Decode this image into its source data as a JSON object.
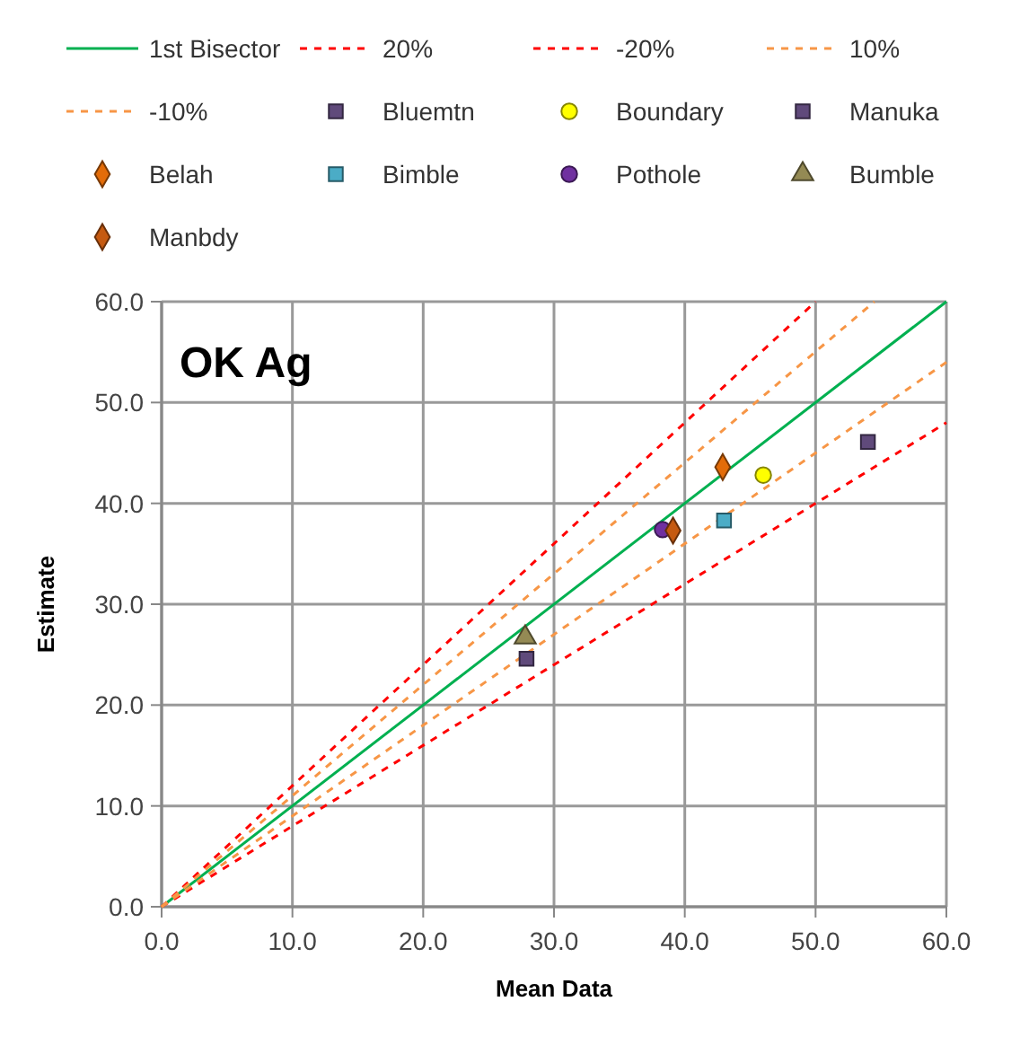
{
  "chart_data": {
    "type": "scatter",
    "title": "OK Ag",
    "xlabel": "Mean Data",
    "ylabel": "Estimate",
    "xlim": [
      0,
      60
    ],
    "ylim": [
      0,
      60
    ],
    "xticks": [
      {
        "value": 0,
        "label": "0.0"
      },
      {
        "value": 10,
        "label": "10.0"
      },
      {
        "value": 20,
        "label": "20.0"
      },
      {
        "value": 30,
        "label": "30.0"
      },
      {
        "value": 40,
        "label": "40.0"
      },
      {
        "value": 50,
        "label": "50.0"
      },
      {
        "value": 60,
        "label": "60.0"
      }
    ],
    "yticks": [
      {
        "value": 0,
        "label": "0.0"
      },
      {
        "value": 10,
        "label": "10.0"
      },
      {
        "value": 20,
        "label": "20.0"
      },
      {
        "value": 30,
        "label": "30.0"
      },
      {
        "value": 40,
        "label": "40.0"
      },
      {
        "value": 50,
        "label": "50.0"
      },
      {
        "value": 60,
        "label": "60.0"
      }
    ],
    "grid": true,
    "legend": "top",
    "series": [
      {
        "name": "1st Bisector",
        "type": "line",
        "color": "#00b050",
        "line_style": "solid",
        "marker": "none",
        "x": [
          0,
          60
        ],
        "values": [
          0,
          60
        ]
      },
      {
        "name": "20%",
        "type": "line",
        "color": "#ff0000",
        "line_style": "dashed",
        "marker": "none",
        "x": [
          0,
          50
        ],
        "values": [
          0,
          60
        ]
      },
      {
        "name": "-20%",
        "type": "line",
        "color": "#ff0000",
        "line_style": "dashed",
        "marker": "none",
        "x": [
          0,
          60
        ],
        "values": [
          0,
          48
        ]
      },
      {
        "name": "10%",
        "type": "line",
        "color": "#f79646",
        "line_style": "dashed",
        "marker": "none",
        "x": [
          0,
          54.5
        ],
        "values": [
          0,
          60
        ]
      },
      {
        "name": "-10%",
        "type": "line",
        "color": "#f79646",
        "line_style": "dashed",
        "marker": "none",
        "x": [
          0,
          60
        ],
        "values": [
          0,
          54
        ]
      },
      {
        "name": "Bluemtn",
        "color": "#604a7b",
        "marker": "square",
        "x": [
          27.9
        ],
        "values": [
          24.6
        ]
      },
      {
        "name": "Boundary",
        "color": "#ffff00",
        "marker": "circle",
        "x": [
          46.0
        ],
        "values": [
          42.8
        ]
      },
      {
        "name": "Manuka",
        "color": "#604a7b",
        "marker": "square",
        "x": [
          54.0
        ],
        "values": [
          46.1
        ]
      },
      {
        "name": "Belah",
        "color": "#e36c09",
        "marker": "diamond",
        "x": [
          42.9
        ],
        "values": [
          43.6
        ]
      },
      {
        "name": "Bimble",
        "color": "#4bacc6",
        "marker": "square",
        "x": [
          43.0
        ],
        "values": [
          38.3
        ]
      },
      {
        "name": "Pothole",
        "color": "#7030a0",
        "marker": "circle",
        "x": [
          38.3
        ],
        "values": [
          37.4
        ]
      },
      {
        "name": "Bumble",
        "color": "#948a54",
        "marker": "triangle",
        "x": [
          27.8
        ],
        "values": [
          26.7
        ]
      },
      {
        "name": "Manbdy",
        "color": "#c55a11",
        "marker": "diamond",
        "x": [
          39.1
        ],
        "values": [
          37.3
        ]
      }
    ]
  }
}
